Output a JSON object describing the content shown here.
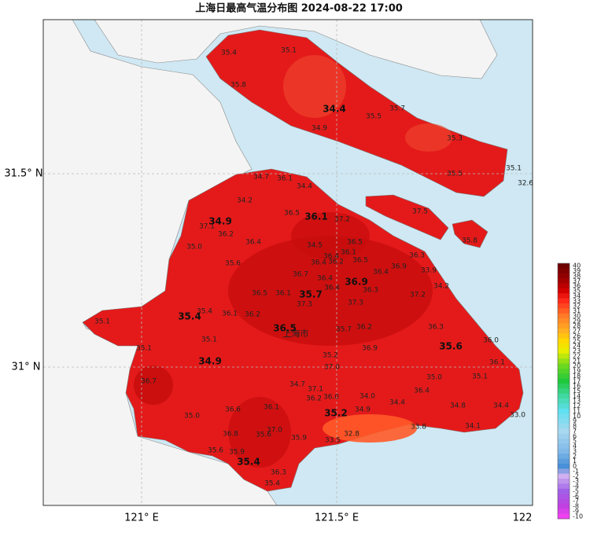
{
  "title": "上海日最高气温分布图 2024-08-22 17:00",
  "lat_ticks": [
    "31.5° N",
    "31° N"
  ],
  "lon_ticks": [
    "121° E",
    "121.5° E",
    "122"
  ],
  "city_label": "上海市",
  "major_stations": [
    "34.4",
    "36.1",
    "34.9",
    "36.9",
    "35.7",
    "35.4",
    "36.5",
    "35.6",
    "34.9",
    "35.2",
    "35.4"
  ],
  "stations": [
    "35.4",
    "35.1",
    "35.8",
    "35.7",
    "35.5",
    "34.9",
    "35.3",
    "35.5",
    "35.1",
    "32.6",
    "34.7",
    "36.1",
    "34.4",
    "34.2",
    "36.5",
    "37.2",
    "37.5",
    "37.1",
    "36.2",
    "36.4",
    "36.5",
    "35.8",
    "35.0",
    "34.5",
    "36.1",
    "36.3",
    "35.6",
    "36.4",
    "36.4",
    "36.2",
    "36.5",
    "36.9",
    "33.9",
    "36.4",
    "36.7",
    "36.4",
    "34.2",
    "36.4",
    "36.3",
    "36.5",
    "36.1",
    "37.2",
    "37.3",
    "37.3",
    "35.1",
    "35.4",
    "36.1",
    "36.2",
    "35.7",
    "36.2",
    "36.3",
    "35.1",
    "36.0",
    "35.1",
    "36.9",
    "35.2",
    "36.1",
    "37.0",
    "35.1",
    "35.0",
    "36.7",
    "34.7",
    "37.1",
    "36.4",
    "36.0",
    "36.2",
    "34.0",
    "34.4",
    "34.8",
    "34.4",
    "36.1",
    "36.6",
    "34.9",
    "33.0",
    "35.0",
    "37.0",
    "34.1",
    "33.8",
    "36.8",
    "35.6",
    "35.9",
    "32.8",
    "33.5",
    "35.6",
    "35.9",
    "36.3",
    "35.4"
  ],
  "colorbar": [
    40,
    39,
    38,
    37,
    36,
    35,
    34,
    33,
    32,
    31,
    30,
    29,
    28,
    27,
    26,
    25,
    24,
    23,
    22,
    21,
    20,
    19,
    18,
    17,
    16,
    15,
    14,
    13,
    12,
    11,
    10,
    9,
    8,
    7,
    6,
    5,
    4,
    3,
    2,
    1,
    0,
    -1,
    -2,
    -3,
    -4,
    -5,
    -6,
    -7,
    -8,
    -9,
    -10
  ]
}
